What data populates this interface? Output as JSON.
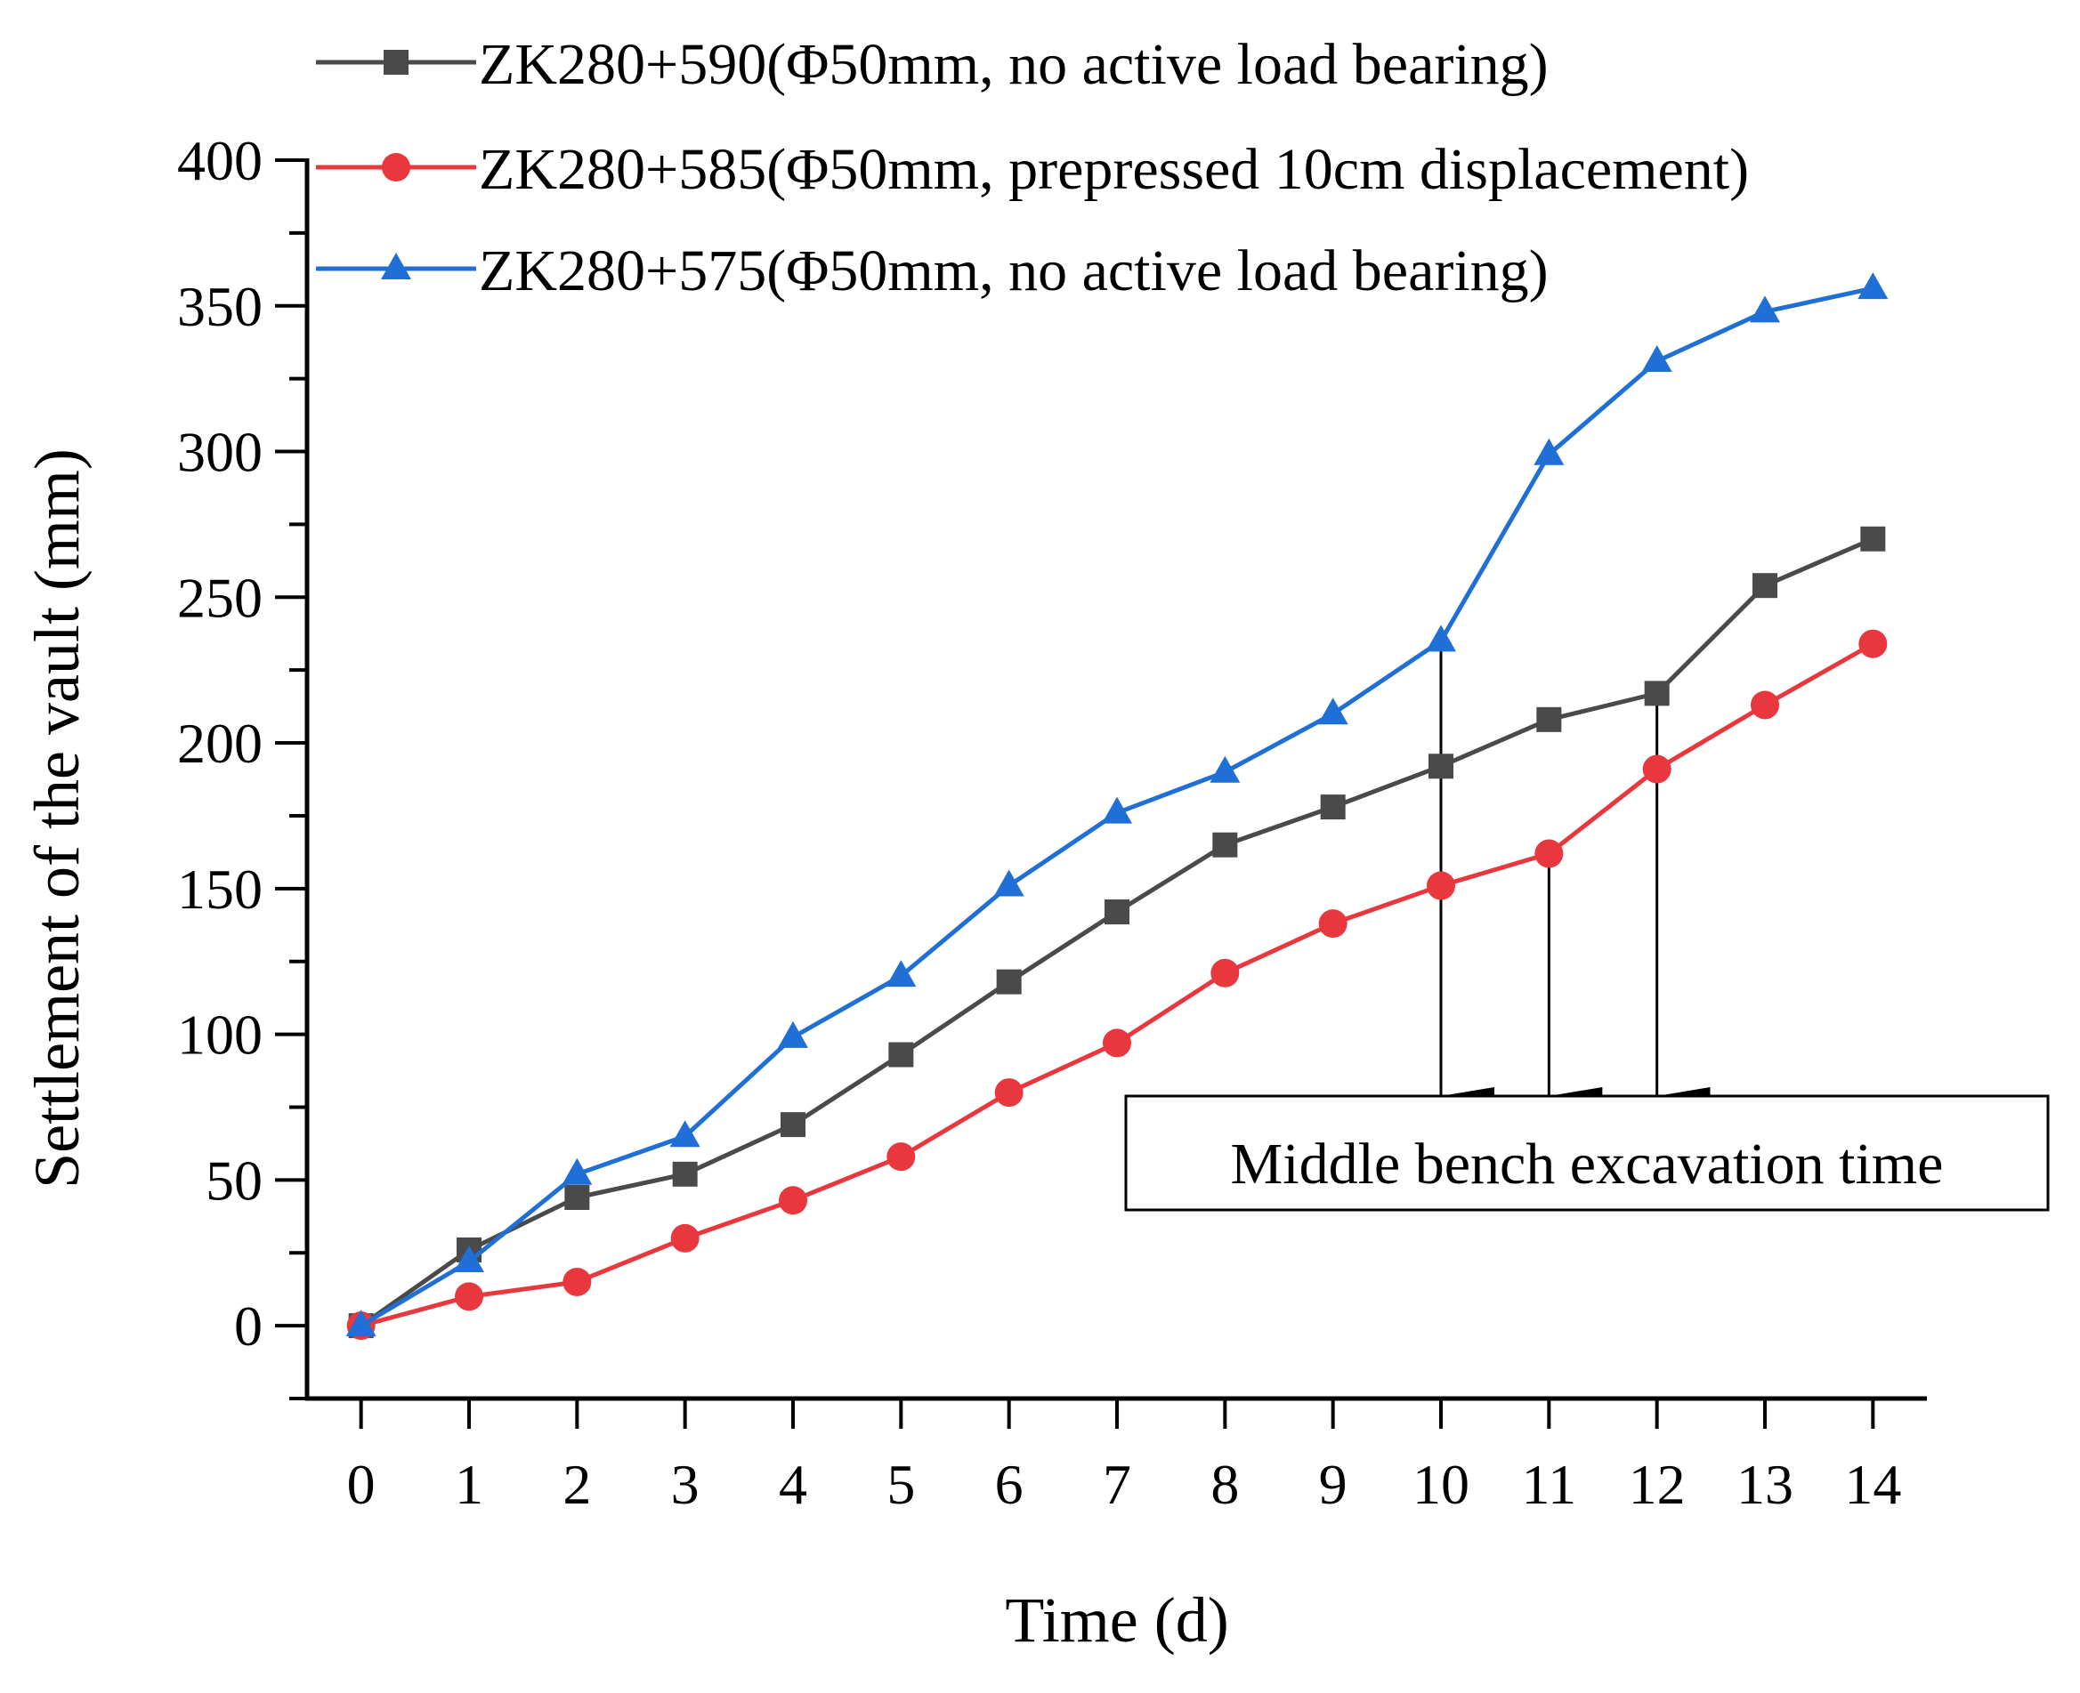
{
  "chart_data": {
    "type": "line",
    "xlabel": "Time (d)",
    "ylabel": "Settlement of the vault (mm)",
    "xlim": [
      -0.5,
      14.5
    ],
    "ylim": [
      -25,
      400
    ],
    "x_ticks": [
      0,
      1,
      2,
      3,
      4,
      5,
      6,
      7,
      8,
      9,
      10,
      11,
      12,
      13,
      14
    ],
    "y_ticks": [
      0,
      50,
      100,
      150,
      200,
      250,
      300,
      350,
      400
    ],
    "x": [
      0,
      1,
      2,
      3,
      4,
      5,
      6,
      7,
      8,
      9,
      10,
      11,
      12,
      13,
      14
    ],
    "series": [
      {
        "name": "ZK280+590(Φ50mm, no active load bearing)",
        "color": "#4a4a4a",
        "marker": "square",
        "values": [
          0,
          26,
          44,
          52,
          69,
          93,
          118,
          142,
          165,
          178,
          192,
          208,
          217,
          254,
          270
        ]
      },
      {
        "name": "ZK280+585(Φ50mm, prepressed 10cm displacement)",
        "color": "#e8383d",
        "marker": "circle",
        "values": [
          0,
          10,
          15,
          30,
          43,
          58,
          80,
          97,
          121,
          138,
          151,
          162,
          191,
          213,
          234
        ]
      },
      {
        "name": "ZK280+575(Φ50mm, no active load bearing)",
        "color": "#1f6fd6",
        "marker": "triangle",
        "values": [
          0,
          22,
          52,
          65,
          99,
          120,
          151,
          176,
          190,
          210,
          235,
          299,
          331,
          348,
          356
        ]
      }
    ],
    "annotation": {
      "text": "Middle bench excavation time",
      "arrow_x": [
        10,
        11,
        12
      ]
    },
    "legend_placement": "top",
    "grid": false
  }
}
